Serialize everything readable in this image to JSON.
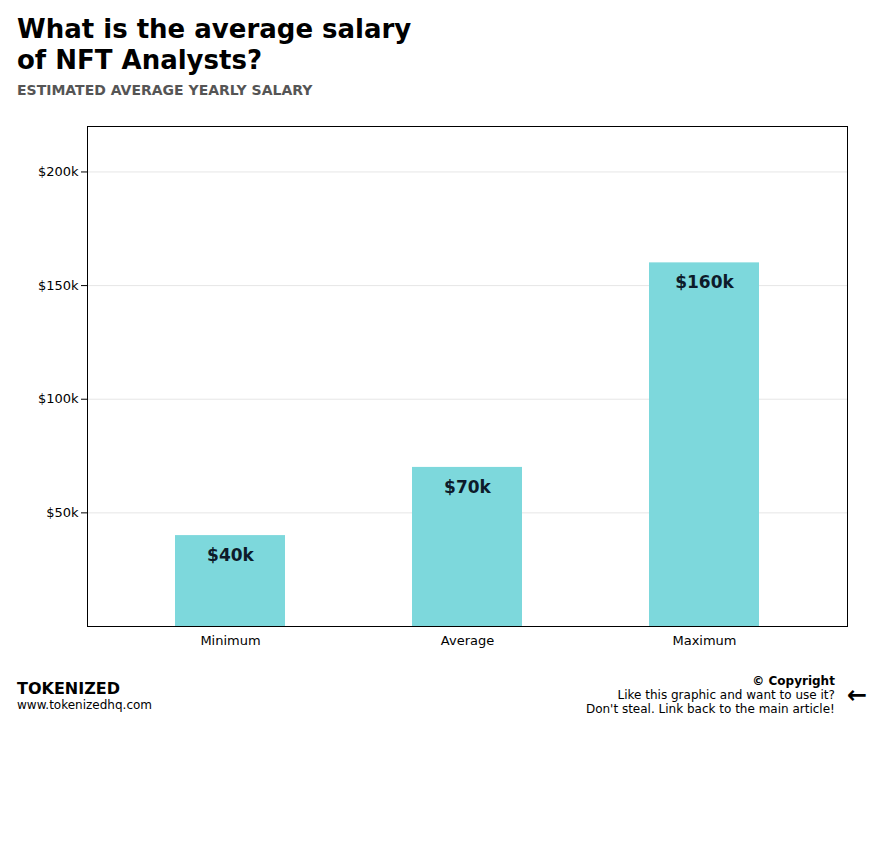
{
  "chart_data": {
    "type": "bar",
    "title": "What is the average salary\nof NFT Analysts?",
    "subtitle": "ESTIMATED AVERAGE YEARLY SALARY",
    "categories": [
      "Minimum",
      "Average",
      "Maximum"
    ],
    "values": [
      40000,
      70000,
      160000
    ],
    "value_labels": [
      "$40k",
      "$70k",
      "$160k"
    ],
    "data_labels": true,
    "color": "#7DD8DC",
    "ylim": [
      0,
      220000
    ],
    "yticks": [
      {
        "value": 50000,
        "label": "$50k"
      },
      {
        "value": 100000,
        "label": "$100k"
      },
      {
        "value": 150000,
        "label": "$150k"
      },
      {
        "value": 200000,
        "label": "$200k"
      }
    ],
    "grid": true,
    "annotations": [
      "TOKENIZED",
      "www.tokenizedhq.com",
      "© Copyright",
      "Like this graphic and want to use it?\nDon't steal. Link back to the main article!",
      "←"
    ]
  }
}
